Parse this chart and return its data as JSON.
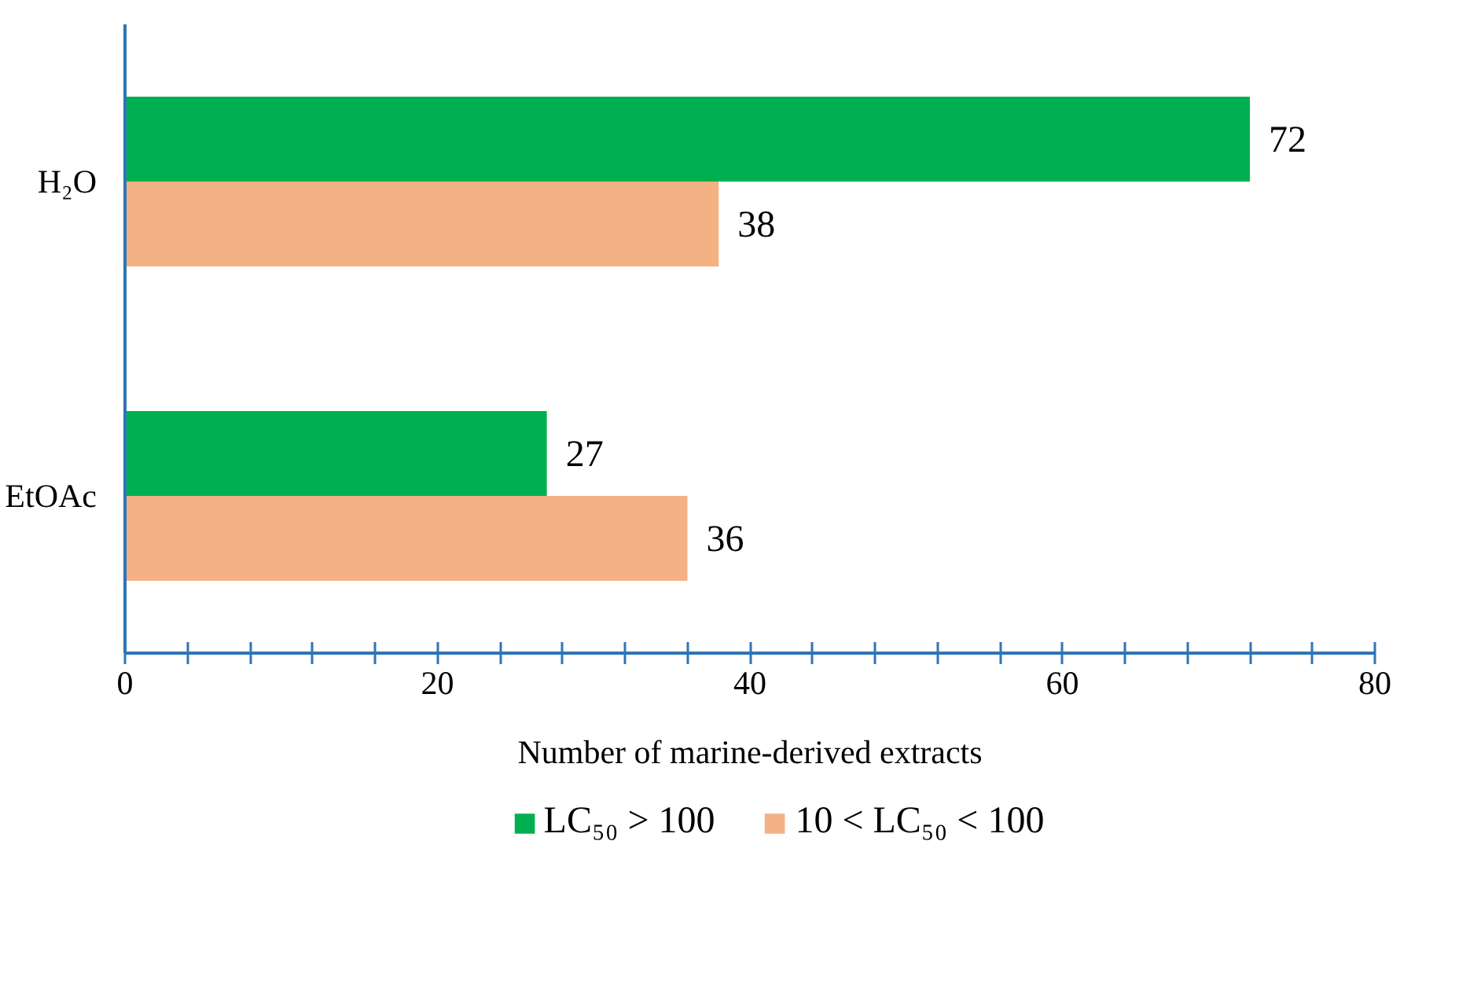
{
  "chart_data": {
    "type": "bar",
    "orientation": "horizontal",
    "xlabel": "Number of marine-derived extracts",
    "categories": [
      "H₂O",
      "EtOAc"
    ],
    "series": [
      {
        "name": "LC₅₀ > 100",
        "color": "#00b050",
        "values": [
          72,
          27
        ]
      },
      {
        "name": "10 < LC₅₀ < 100",
        "color": "#f4b183",
        "values": [
          38,
          36
        ]
      }
    ],
    "xlim": [
      0,
      80
    ],
    "xticks": [
      0,
      {
        "value": 4,
        "label": null
      },
      {
        "value": 8,
        "label": null
      },
      {
        "value": 12,
        "label": null
      },
      {
        "value": 16,
        "label": null
      },
      20,
      {
        "value": 24,
        "label": null
      },
      {
        "value": 28,
        "label": null
      },
      {
        "value": 32,
        "label": null
      },
      {
        "value": 36,
        "label": null
      },
      40,
      {
        "value": 44,
        "label": null
      },
      {
        "value": 48,
        "label": null
      },
      {
        "value": 52,
        "label": null
      },
      {
        "value": 56,
        "label": null
      },
      60,
      {
        "value": 64,
        "label": null
      },
      {
        "value": 68,
        "label": null
      },
      {
        "value": 72,
        "label": null
      },
      {
        "value": 76,
        "label": null
      },
      80
    ],
    "data_labels": true,
    "legend": "bottom",
    "grid": false
  }
}
